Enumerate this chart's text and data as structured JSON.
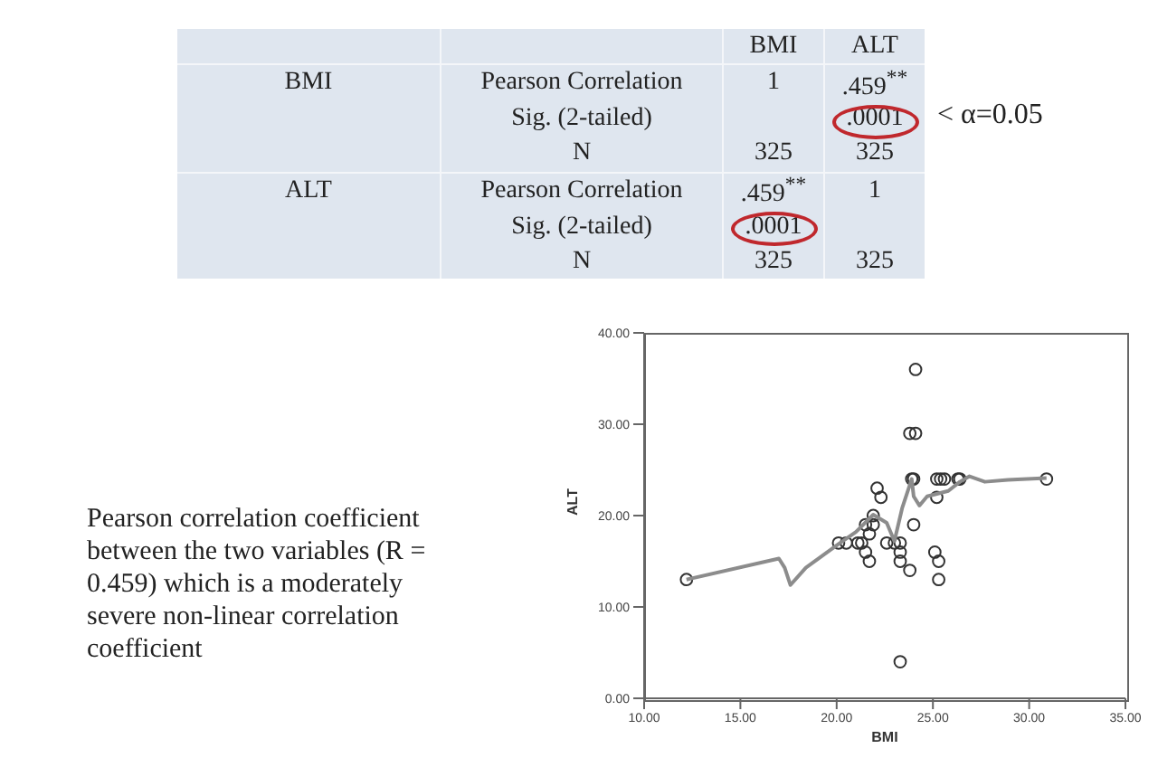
{
  "chart_data": [
    {
      "type": "other",
      "cell_labels": [
        [
          null,
          null,
          "BMI",
          "ALT"
        ],
        [
          "BMI",
          "Pearson Correlation",
          "1",
          ".459$^{**}$"
        ],
        [
          null,
          "Sig. (2-tailed)",
          null,
          ".0001"
        ],
        [
          null,
          "N",
          "325",
          "325"
        ],
        [
          "ALT",
          "Pearson Correlation",
          ".459$^{**}$",
          "1"
        ],
        [
          null,
          "Sig. (2-tailed)",
          ".0001",
          null
        ],
        [
          null,
          "N",
          "325",
          "325"
        ]
      ],
      "annotations": [
        "< α=0.05"
      ]
    },
    {
      "type": "scatter",
      "xlabel": "BMI",
      "ylabel": "ALT",
      "xlim": [
        10,
        35
      ],
      "ylim": [
        0,
        40
      ],
      "marker": "circle",
      "xticks": [
        {
          "value": 10,
          "label": "10.00"
        },
        {
          "value": 15,
          "label": "15.00"
        },
        {
          "value": 20,
          "label": "20.00"
        },
        {
          "value": 25,
          "label": "25.00"
        },
        {
          "value": 30,
          "label": "30.00"
        },
        {
          "value": 35,
          "label": "35.00"
        }
      ],
      "yticks": [
        {
          "value": 0,
          "label": "0.00"
        },
        {
          "value": 10,
          "label": "10.00"
        },
        {
          "value": 20,
          "label": "20.00"
        },
        {
          "value": 30,
          "label": "30.00"
        },
        {
          "value": 40,
          "label": "40.00"
        }
      ],
      "annotations": [
        "Pearson correlation coefficient between the two variables (R = 0.459) which is a moderately severe non-linear correlation coefficient"
      ],
      "series": [
        {
          "type": "scatter",
          "color": "#333333",
          "x": [
            12.2,
            20.1,
            20.5,
            21.1,
            21.3,
            21.5,
            21.5,
            21.7,
            21.7,
            21.9,
            21.9,
            22.1,
            22.3,
            22.6,
            23.0,
            23.3,
            23.3,
            23.3,
            23.3,
            23.8,
            24.0,
            23.9,
            24.0,
            23.8,
            24.1,
            24.1,
            25.2,
            25.1,
            25.3,
            25.3,
            25.2,
            25.4,
            25.6,
            26.3,
            26.4,
            30.9
          ],
          "values": [
            13,
            17,
            17,
            17,
            17,
            19,
            16,
            15,
            18,
            19,
            20,
            23,
            22,
            17,
            17,
            17,
            16,
            15,
            4,
            14,
            19,
            24,
            24,
            29,
            29,
            36,
            22,
            16,
            15,
            13,
            24,
            24,
            24,
            24,
            24,
            24
          ]
        },
        {
          "type": "line",
          "marker": "none",
          "color": "#8c8c8c",
          "x": [
            12.2,
            17.0,
            17.3,
            17.6,
            18.4,
            20.1,
            21.0,
            21.9,
            22.6,
            23.0,
            23.4,
            23.9,
            24.0,
            24.3,
            24.7,
            25.8,
            26.4,
            26.9,
            27.7,
            28.9,
            30.9
          ],
          "values": [
            13,
            15.3,
            14.3,
            12.4,
            14.3,
            16.9,
            18.2,
            20.1,
            19.2,
            17.2,
            20.8,
            24.0,
            22.1,
            21.1,
            22.1,
            22.7,
            23.7,
            24.3,
            23.7,
            23.9,
            24.1
          ]
        }
      ]
    }
  ]
}
